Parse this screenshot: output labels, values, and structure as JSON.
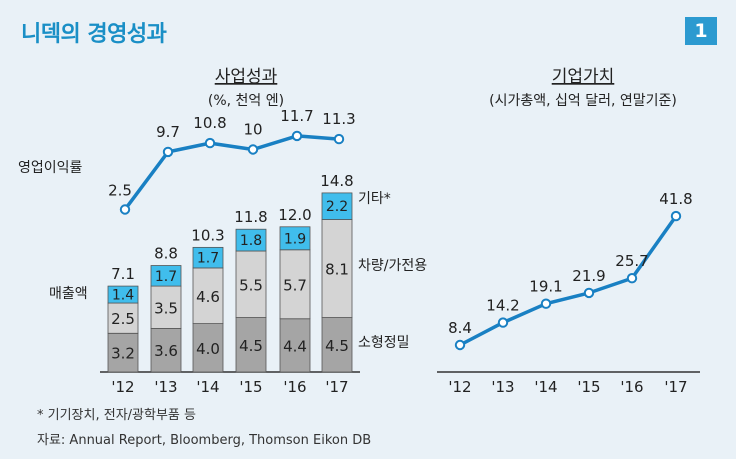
{
  "header": {
    "title": "니덱의 경영성과",
    "badge": "1"
  },
  "colors": {
    "accent": "#1a8fc6",
    "line": "#1980c3",
    "bar_top": "#40bdec",
    "bar_mid": "#d4d4d4",
    "bar_bottom": "#a5a5a5"
  },
  "chart_data": [
    {
      "type": "bar",
      "stacked": true,
      "title": "사업성과",
      "subtitle": "(%, 천억 엔)",
      "ylabel": "매출액",
      "categories": [
        "'12",
        "'13",
        "'14",
        "'15",
        "'16",
        "'17"
      ],
      "series": [
        {
          "name": "소형정밀",
          "values": [
            3.2,
            3.6,
            4.0,
            4.5,
            4.4,
            4.5
          ]
        },
        {
          "name": "차량/가전용",
          "values": [
            2.5,
            3.5,
            4.6,
            5.5,
            5.7,
            8.1
          ]
        },
        {
          "name": "기타*",
          "values": [
            1.4,
            1.7,
            1.7,
            1.8,
            1.9,
            2.2
          ]
        }
      ],
      "totals": [
        7.1,
        8.8,
        10.3,
        11.8,
        12.0,
        14.8
      ],
      "value_labels": {
        "bottom": [
          "3.2",
          "3.6",
          "4.0",
          "4.5",
          "4.4",
          "4.5"
        ],
        "middle": [
          "2.5",
          "3.5",
          "4.6",
          "5.5",
          "5.7",
          "8.1"
        ],
        "top": [
          "1.4",
          "1.7",
          "1.7",
          "1.8",
          "1.9",
          "2.2"
        ],
        "totals": [
          "7.1",
          "8.8",
          "10.3",
          "11.8",
          "12.0",
          "14.8"
        ]
      }
    },
    {
      "type": "line",
      "name": "영업이익률",
      "categories": [
        "'12",
        "'13",
        "'14",
        "'15",
        "'16",
        "'17"
      ],
      "values": [
        2.5,
        9.7,
        10.8,
        10,
        11.7,
        11.3
      ],
      "labels": [
        "2.5",
        "9.7",
        "10.8",
        "10",
        "11.7",
        "11.3"
      ]
    },
    {
      "type": "line",
      "title": "기업가치",
      "subtitle": "(시가총액, 십억 달러, 연말기준)",
      "categories": [
        "'12",
        "'13",
        "'14",
        "'15",
        "'16",
        "'17"
      ],
      "values": [
        8.4,
        14.2,
        19.1,
        21.9,
        25.7,
        41.8
      ],
      "labels": [
        "8.4",
        "14.2",
        "19.1",
        "21.9",
        "25.7",
        "41.8"
      ]
    }
  ],
  "footnotes": {
    "note": "* 기기장치, 전자/광학부품 등",
    "source": "자료: Annual Report, Bloomberg, Thomson Eikon DB"
  }
}
